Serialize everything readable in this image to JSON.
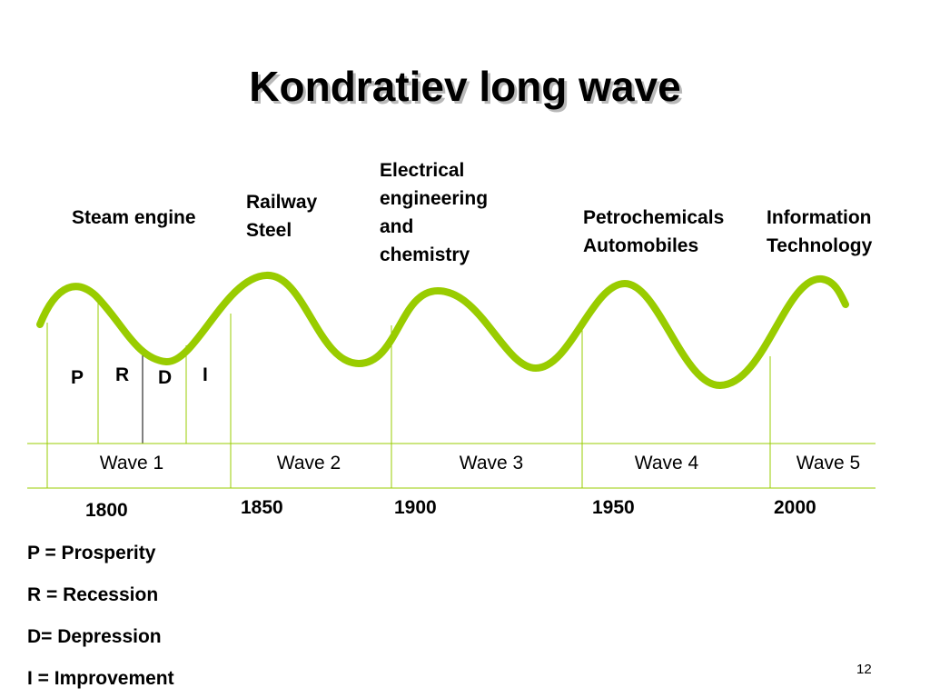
{
  "title": "Kondratiev long wave",
  "technologies": [
    {
      "label": "Steam engine"
    },
    {
      "label": "Railway\nSteel"
    },
    {
      "label": "Electrical\nengineering\nand\nchemistry"
    },
    {
      "label": "Petrochemicals\nAutomobiles"
    },
    {
      "label": "Information\nTechnology"
    }
  ],
  "phases": [
    {
      "letter": "P"
    },
    {
      "letter": "R"
    },
    {
      "letter": "D"
    },
    {
      "letter": "I"
    }
  ],
  "waves": [
    {
      "label": "Wave 1"
    },
    {
      "label": "Wave 2"
    },
    {
      "label": "Wave 3"
    },
    {
      "label": "Wave 4"
    },
    {
      "label": "Wave 5"
    }
  ],
  "years": [
    "1800",
    "1850",
    "1900",
    "1950",
    "2000"
  ],
  "legend": [
    "P = Prosperity",
    "R = Recession",
    "D= Depression",
    "I = Improvement"
  ],
  "slide_number": "12",
  "colors": {
    "wave_line": "#99cc00",
    "guide_line": "#99cc00",
    "phase_divider": "#000000"
  }
}
